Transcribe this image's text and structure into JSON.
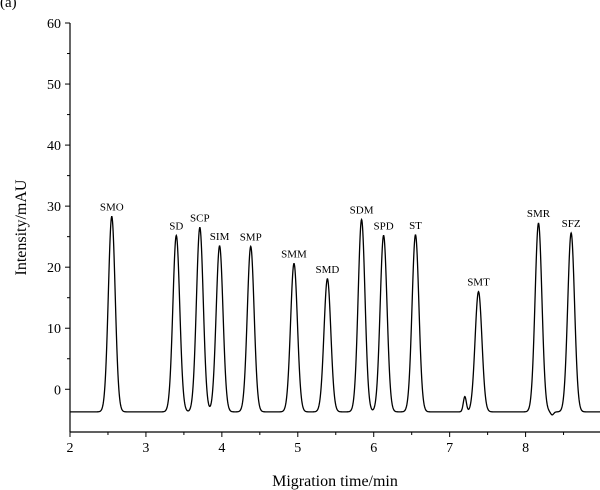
{
  "figure_label": "(a)",
  "chart_data": {
    "type": "line",
    "xlabel": "Migration time/min",
    "ylabel": "Intensity/mAU",
    "xlim": [
      2,
      8.98
    ],
    "ylim": [
      -7,
      60
    ],
    "x_ticks": [
      2,
      3,
      4,
      5,
      6,
      7,
      8
    ],
    "y_ticks": [
      0,
      10,
      20,
      30,
      40,
      50,
      60
    ],
    "grid": false,
    "baseline": -3.7,
    "series": [
      {
        "peaks": [
          {
            "label": "SMO",
            "x": 2.55,
            "y": 28.3
          },
          {
            "label": "SD",
            "x": 3.4,
            "y": 25.2
          },
          {
            "label": "SCP",
            "x": 3.71,
            "y": 26.5
          },
          {
            "label": "SIM",
            "x": 3.97,
            "y": 23.5
          },
          {
            "label": "SMP",
            "x": 4.38,
            "y": 23.4
          },
          {
            "label": "SMM",
            "x": 4.95,
            "y": 20.6
          },
          {
            "label": "SMD",
            "x": 5.39,
            "y": 18.1
          },
          {
            "label": "SDM",
            "x": 5.84,
            "y": 27.8
          },
          {
            "label": "SPD",
            "x": 6.13,
            "y": 25.2
          },
          {
            "label": "ST",
            "x": 6.55,
            "y": 25.3
          },
          {
            "label": "SMT",
            "x": 7.38,
            "y": 16.0
          },
          {
            "label": "SMR",
            "x": 8.17,
            "y": 27.2
          },
          {
            "label": "SFZ",
            "x": 8.6,
            "y": 25.6
          }
        ],
        "minor_features": [
          {
            "x": 7.2,
            "y": -1.2
          },
          {
            "x": 8.35,
            "y": -4.2
          }
        ]
      }
    ]
  }
}
